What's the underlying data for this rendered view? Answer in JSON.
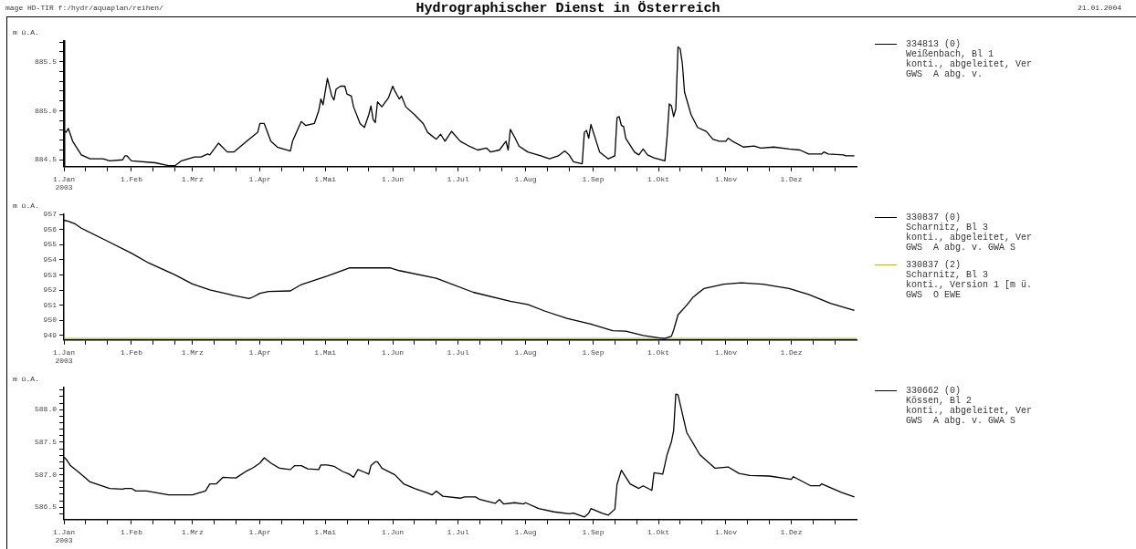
{
  "chart_data": [
    {
      "type": "line",
      "title": "Hydrographischer Dienst in Österreich",
      "annotations": [
        "mage HD-TIR f:/hydr/aquaplan/reihen/",
        "21.01.2004"
      ],
      "ylabel": "m ü.A.",
      "legend": "right",
      "xlim": [
        "2003-01-01",
        "2003-12-31"
      ],
      "xticks": [
        {
          "value": "2003-01-01",
          "label": "1.Jan\n2003"
        },
        {
          "value": "2003-01-11",
          "label": null
        },
        {
          "value": "2003-01-21",
          "label": null
        },
        {
          "value": "2003-02-01",
          "label": "1.Feb"
        },
        {
          "value": "2003-02-11",
          "label": null
        },
        {
          "value": "2003-02-21",
          "label": null
        },
        {
          "value": "2003-03-01",
          "label": "1.Mrz"
        },
        {
          "value": "2003-03-11",
          "label": null
        },
        {
          "value": "2003-03-21",
          "label": null
        },
        {
          "value": "2003-04-01",
          "label": "1.Apr"
        },
        {
          "value": "2003-04-11",
          "label": null
        },
        {
          "value": "2003-04-21",
          "label": null
        },
        {
          "value": "2003-05-01",
          "label": "1.Mai"
        },
        {
          "value": "2003-05-11",
          "label": null
        },
        {
          "value": "2003-05-21",
          "label": null
        },
        {
          "value": "2003-06-01",
          "label": "1.Jun"
        },
        {
          "value": "2003-06-11",
          "label": null
        },
        {
          "value": "2003-06-21",
          "label": null
        },
        {
          "value": "2003-07-01",
          "label": "1.Jul"
        },
        {
          "value": "2003-07-11",
          "label": null
        },
        {
          "value": "2003-07-21",
          "label": null
        },
        {
          "value": "2003-08-01",
          "label": "1.Aug"
        },
        {
          "value": "2003-08-11",
          "label": null
        },
        {
          "value": "2003-08-21",
          "label": null
        },
        {
          "value": "2003-09-01",
          "label": "1.Sep"
        },
        {
          "value": "2003-09-11",
          "label": null
        },
        {
          "value": "2003-09-21",
          "label": null
        },
        {
          "value": "2003-10-01",
          "label": "1.Okt"
        },
        {
          "value": "2003-10-11",
          "label": null
        },
        {
          "value": "2003-10-21",
          "label": null
        },
        {
          "value": "2003-11-01",
          "label": "1.Nov"
        },
        {
          "value": "2003-11-11",
          "label": null
        },
        {
          "value": "2003-11-21",
          "label": null
        },
        {
          "value": "2003-12-01",
          "label": "1.Dez"
        },
        {
          "value": "2003-12-11",
          "label": null
        },
        {
          "value": "2003-12-21",
          "label": null
        }
      ],
      "ylim": [
        884.43,
        885.71
      ],
      "yticks": [
        {
          "value": 884.5,
          "label": "884.5"
        },
        {
          "value": 884.6,
          "label": null
        },
        {
          "value": 884.7,
          "label": null
        },
        {
          "value": 884.8,
          "label": null
        },
        {
          "value": 884.9,
          "label": null
        },
        {
          "value": 885,
          "label": "885.0"
        },
        {
          "value": 885.1,
          "label": null
        },
        {
          "value": 885.2,
          "label": null
        },
        {
          "value": 885.3,
          "label": null
        },
        {
          "value": 885.4,
          "label": null
        },
        {
          "value": 885.5,
          "label": "885.5"
        },
        {
          "value": 885.6,
          "label": null
        },
        {
          "value": 885.7,
          "label": null
        }
      ],
      "x": [
        "2003-01-01",
        "2003-01-02",
        "2003-01-03",
        "2003-01-05",
        "2003-01-09",
        "2003-01-13",
        "2003-01-19",
        "2003-01-22",
        "2003-01-28",
        "2003-01-29",
        "2003-01-30",
        "2003-02-01",
        "2003-02-12",
        "2003-02-18",
        "2003-02-21",
        "2003-02-24",
        "2003-03-02",
        "2003-03-05",
        "2003-03-08",
        "2003-03-09",
        "2003-03-13",
        "2003-03-17",
        "2003-03-20",
        "2003-03-26",
        "2003-03-31",
        "2003-04-01",
        "2003-04-03",
        "2003-04-06",
        "2003-04-09",
        "2003-04-15",
        "2003-04-16",
        "2003-04-20",
        "2003-04-22",
        "2003-04-26",
        "2003-04-28",
        "2003-04-29",
        "2003-04-30",
        "2003-05-02",
        "2003-05-04",
        "2003-05-05",
        "2003-05-06",
        "2003-05-08",
        "2003-05-10",
        "2003-05-11",
        "2003-05-13",
        "2003-05-14",
        "2003-05-17",
        "2003-05-19",
        "2003-05-21",
        "2003-05-22",
        "2003-05-23",
        "2003-05-24",
        "2003-05-25",
        "2003-05-27",
        "2003-05-30",
        "2003-06-01",
        "2003-06-02",
        "2003-06-04",
        "2003-06-05",
        "2003-06-07",
        "2003-06-11",
        "2003-06-15",
        "2003-06-17",
        "2003-06-21",
        "2003-06-23",
        "2003-06-25",
        "2003-06-28",
        "2003-07-02",
        "2003-07-06",
        "2003-07-10",
        "2003-07-14",
        "2003-07-16",
        "2003-07-20",
        "2003-07-23",
        "2003-07-24",
        "2003-07-25",
        "2003-07-27",
        "2003-07-29",
        "2003-08-02",
        "2003-08-08",
        "2003-08-12",
        "2003-08-16",
        "2003-08-19",
        "2003-08-21",
        "2003-08-23",
        "2003-08-27",
        "2003-08-28",
        "2003-08-29",
        "2003-08-30",
        "2003-08-31",
        "2003-09-04",
        "2003-09-08",
        "2003-09-11",
        "2003-09-12",
        "2003-09-13",
        "2003-09-14",
        "2003-09-15",
        "2003-09-16",
        "2003-09-20",
        "2003-09-22",
        "2003-09-24",
        "2003-09-26",
        "2003-09-29",
        "2003-10-04",
        "2003-10-05",
        "2003-10-06",
        "2003-10-07",
        "2003-10-08",
        "2003-10-09",
        "2003-10-10",
        "2003-10-11",
        "2003-10-12",
        "2003-10-13",
        "2003-10-16",
        "2003-10-19",
        "2003-10-23",
        "2003-10-26",
        "2003-10-29",
        "2003-11-01",
        "2003-11-02",
        "2003-11-04",
        "2003-11-09",
        "2003-11-14",
        "2003-11-17",
        "2003-11-23",
        "2003-11-30",
        "2003-12-05",
        "2003-12-09",
        "2003-12-15",
        "2003-12-16",
        "2003-12-18",
        "2003-12-25",
        "2003-12-26",
        "2003-12-30"
      ],
      "series": [
        {
          "name": "334813 (0)\nWeißenbach, Bl 1\nkonti., abgeleitet, Ver\nGWS  A abg. v.",
          "color": "#000000",
          "values": [
            884.8,
            884.78,
            884.82,
            884.69,
            884.55,
            884.51,
            884.51,
            884.49,
            884.5,
            884.54,
            884.54,
            884.49,
            884.47,
            884.44,
            884.44,
            884.49,
            884.53,
            884.53,
            884.56,
            884.55,
            884.67,
            884.58,
            884.58,
            884.69,
            884.78,
            884.87,
            884.87,
            884.69,
            884.63,
            884.59,
            884.69,
            884.89,
            884.85,
            884.87,
            885.0,
            885.12,
            885.06,
            885.33,
            885.15,
            885.11,
            885.22,
            885.25,
            885.25,
            885.17,
            885.15,
            885.04,
            884.87,
            884.83,
            884.96,
            885.05,
            884.91,
            884.88,
            885.09,
            885.04,
            885.13,
            885.25,
            885.2,
            885.12,
            885.15,
            885.04,
            884.96,
            884.87,
            884.78,
            884.71,
            884.76,
            884.69,
            884.79,
            884.69,
            884.64,
            884.6,
            884.62,
            884.58,
            884.6,
            884.69,
            884.6,
            884.81,
            884.73,
            884.64,
            884.58,
            884.54,
            884.51,
            884.54,
            884.59,
            884.55,
            884.48,
            884.46,
            884.78,
            884.8,
            884.72,
            884.86,
            884.58,
            884.51,
            884.54,
            884.93,
            884.94,
            884.85,
            884.84,
            884.72,
            884.58,
            884.55,
            884.61,
            884.55,
            884.52,
            884.49,
            884.74,
            885.07,
            885.05,
            884.94,
            885.02,
            885.65,
            885.63,
            885.48,
            885.19,
            884.96,
            884.83,
            884.79,
            884.71,
            884.69,
            884.69,
            884.72,
            884.69,
            884.63,
            884.64,
            884.62,
            884.63,
            884.61,
            884.6,
            884.56,
            884.56,
            884.58,
            884.56,
            884.55,
            884.54,
            884.54
          ]
        }
      ]
    },
    {
      "type": "line",
      "ylabel": "m ü.A.",
      "legend": "right",
      "xlim": [
        "2003-01-01",
        "2003-12-31"
      ],
      "xticks": [
        {
          "value": "2003-01-01",
          "label": "1.Jan\n2003"
        },
        {
          "value": "2003-01-11",
          "label": null
        },
        {
          "value": "2003-01-21",
          "label": null
        },
        {
          "value": "2003-02-01",
          "label": "1.Feb"
        },
        {
          "value": "2003-02-11",
          "label": null
        },
        {
          "value": "2003-02-21",
          "label": null
        },
        {
          "value": "2003-03-01",
          "label": "1.Mrz"
        },
        {
          "value": "2003-03-11",
          "label": null
        },
        {
          "value": "2003-03-21",
          "label": null
        },
        {
          "value": "2003-04-01",
          "label": "1.Apr"
        },
        {
          "value": "2003-04-11",
          "label": null
        },
        {
          "value": "2003-04-21",
          "label": null
        },
        {
          "value": "2003-05-01",
          "label": "1.Mai"
        },
        {
          "value": "2003-05-11",
          "label": null
        },
        {
          "value": "2003-05-21",
          "label": null
        },
        {
          "value": "2003-06-01",
          "label": "1.Jun"
        },
        {
          "value": "2003-06-11",
          "label": null
        },
        {
          "value": "2003-06-21",
          "label": null
        },
        {
          "value": "2003-07-01",
          "label": "1.Jul"
        },
        {
          "value": "2003-07-11",
          "label": null
        },
        {
          "value": "2003-07-21",
          "label": null
        },
        {
          "value": "2003-08-01",
          "label": "1.Aug"
        },
        {
          "value": "2003-08-11",
          "label": null
        },
        {
          "value": "2003-08-21",
          "label": null
        },
        {
          "value": "2003-09-01",
          "label": "1.Sep"
        },
        {
          "value": "2003-09-11",
          "label": null
        },
        {
          "value": "2003-09-21",
          "label": null
        },
        {
          "value": "2003-10-01",
          "label": "1.Okt"
        },
        {
          "value": "2003-10-11",
          "label": null
        },
        {
          "value": "2003-10-21",
          "label": null
        },
        {
          "value": "2003-11-01",
          "label": "1.Nov"
        },
        {
          "value": "2003-11-11",
          "label": null
        },
        {
          "value": "2003-11-21",
          "label": null
        },
        {
          "value": "2003-12-01",
          "label": "1.Dez"
        },
        {
          "value": "2003-12-11",
          "label": null
        },
        {
          "value": "2003-12-21",
          "label": null
        }
      ],
      "ylim": [
        948.7,
        957
      ],
      "yticks": [
        949,
        950,
        951,
        952,
        953,
        954,
        955,
        956,
        957
      ],
      "x": [
        "2003-01-01",
        "2003-01-03",
        "2003-01-06",
        "2003-01-09",
        "2003-01-20",
        "2003-02-01",
        "2003-02-09",
        "2003-02-21",
        "2003-03-01",
        "2003-03-09",
        "2003-03-19",
        "2003-03-27",
        "2003-03-29",
        "2003-04-01",
        "2003-04-05",
        "2003-04-15",
        "2003-04-20",
        "2003-05-02",
        "2003-05-12",
        "2003-05-31",
        "2003-06-04",
        "2003-06-21",
        "2003-07-08",
        "2003-07-25",
        "2003-08-02",
        "2003-08-10",
        "2003-08-20",
        "2003-08-31",
        "2003-09-10",
        "2003-09-16",
        "2003-09-24",
        "2003-10-01",
        "2003-10-04",
        "2003-10-07",
        "2003-10-08",
        "2003-10-10",
        "2003-10-14",
        "2003-10-17",
        "2003-10-22",
        "2003-10-31",
        "2003-11-08",
        "2003-11-18",
        "2003-11-30",
        "2003-12-09",
        "2003-12-19",
        "2003-12-30"
      ],
      "series": [
        {
          "name": "330837 (0)\nScharnitz, Bl 3\nkonti., abgeleitet, Ver\nGWS  A abg. v. GWA S",
          "color": "#000000",
          "values": [
            956.61,
            956.54,
            956.38,
            956.08,
            955.3,
            954.43,
            953.78,
            953.0,
            952.4,
            952.01,
            951.67,
            951.44,
            951.55,
            951.78,
            951.9,
            951.94,
            952.36,
            952.93,
            953.46,
            953.46,
            953.28,
            952.77,
            951.85,
            951.25,
            951.05,
            950.6,
            950.13,
            949.75,
            949.31,
            949.28,
            949.0,
            948.85,
            948.8,
            948.95,
            949.35,
            950.36,
            951.0,
            951.54,
            952.1,
            952.39,
            952.48,
            952.39,
            952.1,
            951.71,
            951.12,
            950.65
          ]
        },
        {
          "name": "330837 (2)\nScharnitz, Bl 3\nkonti., Version 1 [m ü.\nGWS  O EWE",
          "color": "#bdb82a",
          "x": [
            "2003-01-01",
            "2003-12-31"
          ],
          "values": [
            948.8,
            948.8
          ]
        }
      ]
    },
    {
      "type": "line",
      "ylabel": "m ü.A.",
      "legend": "right",
      "xlim": [
        "2003-01-01",
        "2003-12-31"
      ],
      "xticks": [
        {
          "value": "2003-01-01",
          "label": "1.Jan\n2003"
        },
        {
          "value": "2003-01-11",
          "label": null
        },
        {
          "value": "2003-01-21",
          "label": null
        },
        {
          "value": "2003-02-01",
          "label": "1.Feb"
        },
        {
          "value": "2003-02-11",
          "label": null
        },
        {
          "value": "2003-02-21",
          "label": null
        },
        {
          "value": "2003-03-01",
          "label": "1.Mrz"
        },
        {
          "value": "2003-03-11",
          "label": null
        },
        {
          "value": "2003-03-21",
          "label": null
        },
        {
          "value": "2003-04-01",
          "label": "1.Apr"
        },
        {
          "value": "2003-04-11",
          "label": null
        },
        {
          "value": "2003-04-21",
          "label": null
        },
        {
          "value": "2003-05-01",
          "label": "1.Mai"
        },
        {
          "value": "2003-05-11",
          "label": null
        },
        {
          "value": "2003-05-21",
          "label": null
        },
        {
          "value": "2003-06-01",
          "label": "1.Jun"
        },
        {
          "value": "2003-06-11",
          "label": null
        },
        {
          "value": "2003-06-21",
          "label": null
        },
        {
          "value": "2003-07-01",
          "label": "1.Jul"
        },
        {
          "value": "2003-07-11",
          "label": null
        },
        {
          "value": "2003-07-21",
          "label": null
        },
        {
          "value": "2003-08-01",
          "label": "1.Aug"
        },
        {
          "value": "2003-08-11",
          "label": null
        },
        {
          "value": "2003-08-21",
          "label": null
        },
        {
          "value": "2003-09-01",
          "label": "1.Sep"
        },
        {
          "value": "2003-09-11",
          "label": null
        },
        {
          "value": "2003-09-21",
          "label": null
        },
        {
          "value": "2003-10-01",
          "label": "1.Okt"
        },
        {
          "value": "2003-10-11",
          "label": null
        },
        {
          "value": "2003-10-21",
          "label": null
        },
        {
          "value": "2003-11-01",
          "label": "1.Nov"
        },
        {
          "value": "2003-11-11",
          "label": null
        },
        {
          "value": "2003-11-21",
          "label": null
        },
        {
          "value": "2003-12-01",
          "label": "1.Dez"
        },
        {
          "value": "2003-12-11",
          "label": null
        },
        {
          "value": "2003-12-21",
          "label": null
        }
      ],
      "ylim": [
        586.31,
        588.34
      ],
      "yticks": [
        {
          "value": 586.4,
          "label": null
        },
        {
          "value": 586.5,
          "label": "586.5"
        },
        {
          "value": 586.6,
          "label": null
        },
        {
          "value": 586.7,
          "label": null
        },
        {
          "value": 586.8,
          "label": null
        },
        {
          "value": 586.9,
          "label": null
        },
        {
          "value": 587,
          "label": "587.0"
        },
        {
          "value": 587.1,
          "label": null
        },
        {
          "value": 587.2,
          "label": null
        },
        {
          "value": 587.3,
          "label": null
        },
        {
          "value": 587.4,
          "label": null
        },
        {
          "value": 587.5,
          "label": "587.5"
        },
        {
          "value": 587.6,
          "label": null
        },
        {
          "value": 587.7,
          "label": null
        },
        {
          "value": 587.8,
          "label": null
        },
        {
          "value": 587.9,
          "label": null
        },
        {
          "value": 588,
          "label": "588.0"
        },
        {
          "value": 588.1,
          "label": null
        },
        {
          "value": 588.2,
          "label": null
        },
        {
          "value": 588.3,
          "label": null
        }
      ],
      "x": [
        "2003-01-01",
        "2003-01-02",
        "2003-01-04",
        "2003-01-07",
        "2003-01-11",
        "2003-01-13",
        "2003-01-22",
        "2003-01-28",
        "2003-01-29",
        "2003-02-01",
        "2003-02-03",
        "2003-02-08",
        "2003-02-18",
        "2003-03-01",
        "2003-03-07",
        "2003-03-09",
        "2003-03-12",
        "2003-03-15",
        "2003-03-21",
        "2003-03-26",
        "2003-03-29",
        "2003-04-01",
        "2003-04-03",
        "2003-04-06",
        "2003-04-10",
        "2003-04-15",
        "2003-04-17",
        "2003-04-20",
        "2003-04-23",
        "2003-04-28",
        "2003-04-29",
        "2003-05-02",
        "2003-05-05",
        "2003-05-09",
        "2003-05-12",
        "2003-05-14",
        "2003-05-16",
        "2003-05-19",
        "2003-05-21",
        "2003-05-22",
        "2003-05-24",
        "2003-05-25",
        "2003-05-27",
        "2003-06-02",
        "2003-06-06",
        "2003-06-11",
        "2003-06-17",
        "2003-06-19",
        "2003-06-21",
        "2003-06-24",
        "2003-07-02",
        "2003-07-04",
        "2003-07-09",
        "2003-07-11",
        "2003-07-18",
        "2003-07-20",
        "2003-07-22",
        "2003-07-27",
        "2003-07-31",
        "2003-08-01",
        "2003-08-07",
        "2003-08-14",
        "2003-08-21",
        "2003-08-23",
        "2003-08-28",
        "2003-08-30",
        "2003-08-31",
        "2003-09-05",
        "2003-09-08",
        "2003-09-11",
        "2003-09-12",
        "2003-09-14",
        "2003-09-18",
        "2003-09-22",
        "2003-09-24",
        "2003-09-28",
        "2003-09-29",
        "2003-10-03",
        "2003-10-05",
        "2003-10-07",
        "2003-10-08",
        "2003-10-09",
        "2003-10-10",
        "2003-10-14",
        "2003-10-20",
        "2003-10-27",
        "2003-11-02",
        "2003-11-07",
        "2003-11-12",
        "2003-11-21",
        "2003-12-01",
        "2003-12-02",
        "2003-12-10",
        "2003-12-14",
        "2003-12-15",
        "2003-12-24",
        "2003-12-30"
      ],
      "series": [
        {
          "name": "330662 (0)\nKössen, Bl 2\nkonti., abgeleitet, Ver\nGWS  A abg. v. GWA S",
          "color": "#000000",
          "values": [
            587.27,
            587.24,
            587.14,
            587.06,
            586.95,
            586.89,
            586.79,
            586.78,
            586.79,
            586.79,
            586.75,
            586.75,
            586.69,
            586.69,
            586.75,
            586.86,
            586.86,
            586.96,
            586.95,
            587.06,
            587.11,
            587.18,
            587.26,
            587.18,
            587.1,
            587.08,
            587.14,
            587.14,
            587.09,
            587.08,
            587.15,
            587.15,
            587.13,
            587.05,
            587.01,
            586.96,
            587.08,
            587.04,
            587.01,
            587.14,
            587.2,
            587.2,
            587.1,
            587.0,
            586.86,
            586.79,
            586.72,
            586.69,
            586.75,
            586.67,
            586.64,
            586.66,
            586.66,
            586.62,
            586.56,
            586.62,
            586.55,
            586.57,
            586.55,
            586.57,
            586.48,
            586.43,
            586.4,
            586.41,
            586.35,
            586.41,
            586.48,
            586.41,
            586.38,
            586.47,
            586.85,
            587.07,
            586.86,
            586.79,
            586.83,
            586.76,
            587.03,
            587.01,
            587.31,
            587.51,
            587.68,
            588.24,
            588.23,
            587.65,
            587.31,
            587.1,
            587.12,
            587.02,
            586.99,
            586.98,
            586.93,
            586.97,
            586.83,
            586.83,
            586.86,
            586.73,
            586.66
          ]
        }
      ]
    }
  ]
}
